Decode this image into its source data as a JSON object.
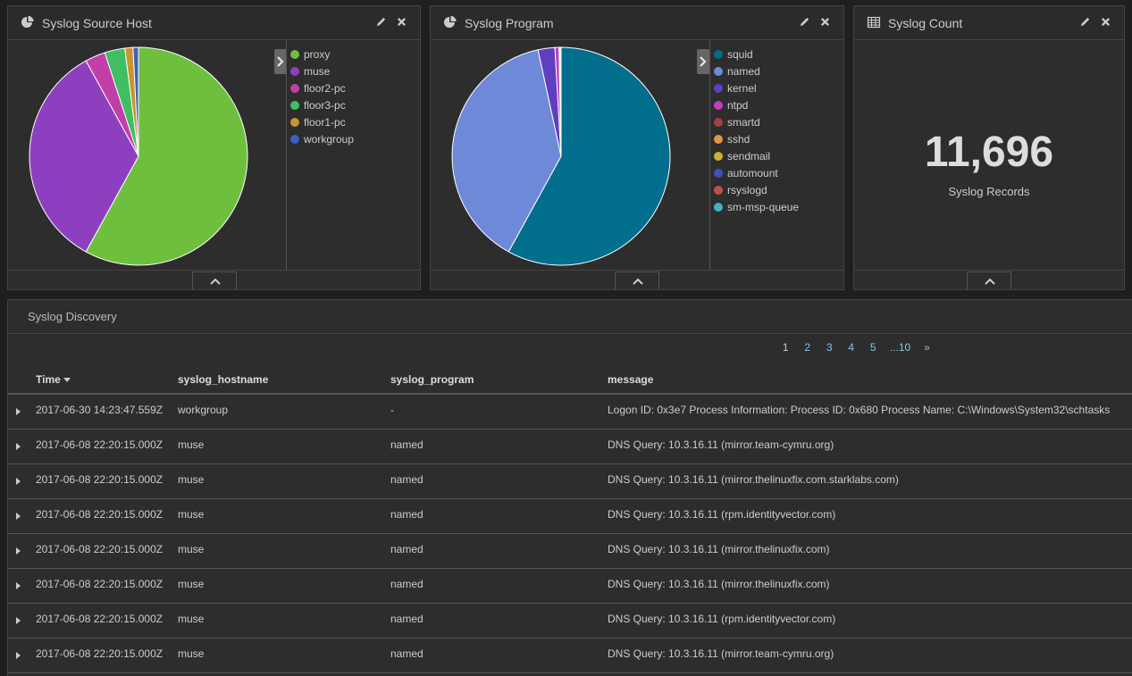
{
  "panels": {
    "source_host": {
      "title": "Syslog Source Host",
      "icon": "pie-chart-icon",
      "legend": [
        {
          "label": "proxy",
          "color": "#6fbf3f",
          "value": 58
        },
        {
          "label": "muse",
          "color": "#8e3fbf",
          "value": 34
        },
        {
          "label": "floor2-pc",
          "color": "#c23fa8",
          "value": 3
        },
        {
          "label": "floor3-pc",
          "color": "#3fbf62",
          "value": 3
        },
        {
          "label": "floor1-pc",
          "color": "#c9952f",
          "value": 1.2
        },
        {
          "label": "workgroup",
          "color": "#3f5fbf",
          "value": 0.8
        }
      ]
    },
    "program": {
      "title": "Syslog Program",
      "icon": "pie-chart-icon",
      "legend": [
        {
          "label": "squid",
          "color": "#006e8c",
          "value": 58
        },
        {
          "label": "named",
          "color": "#6f89d9",
          "value": 38.6
        },
        {
          "label": "kernel",
          "color": "#5f3fbf",
          "value": 2.5
        },
        {
          "label": "ntpd",
          "color": "#bf3fbf",
          "value": 0.6
        },
        {
          "label": "smartd",
          "color": "#a83f3f",
          "value": 0.1
        },
        {
          "label": "sshd",
          "color": "#e0954a",
          "value": 0.1
        },
        {
          "label": "sendmail",
          "color": "#c9b42f",
          "value": 0.03
        },
        {
          "label": "automount",
          "color": "#3f4fbf",
          "value": 0.03
        },
        {
          "label": "rsyslogd",
          "color": "#c0504d",
          "value": 0.02
        },
        {
          "label": "sm-msp-queue",
          "color": "#3fb6bf",
          "value": 0.02
        }
      ]
    },
    "count": {
      "title": "Syslog Count",
      "icon": "table-icon",
      "value": "11,696",
      "label": "Syslog Records"
    }
  },
  "discovery": {
    "title": "Syslog Discovery",
    "pager": {
      "pages": [
        "1",
        "2",
        "3",
        "4",
        "5"
      ],
      "ellipsis": "...10",
      "next": "»"
    },
    "columns": [
      "Time",
      "syslog_hostname",
      "syslog_program",
      "message"
    ],
    "rows": [
      {
        "time": "2017-06-30 14:23:47.559Z",
        "host": "workgroup",
        "program": "-",
        "message": "Logon ID:   0x3e7     Process Information:    Process ID:  0x680    Process Name:  C:\\Windows\\System32\\schtasks"
      },
      {
        "time": "2017-06-08 22:20:15.000Z",
        "host": "muse",
        "program": "named",
        "message": "DNS Query: 10.3.16.11 (mirror.team-cymru.org)"
      },
      {
        "time": "2017-06-08 22:20:15.000Z",
        "host": "muse",
        "program": "named",
        "message": "DNS Query: 10.3.16.11 (mirror.thelinuxfix.com.starklabs.com)"
      },
      {
        "time": "2017-06-08 22:20:15.000Z",
        "host": "muse",
        "program": "named",
        "message": "DNS Query: 10.3.16.11 (rpm.identityvector.com)"
      },
      {
        "time": "2017-06-08 22:20:15.000Z",
        "host": "muse",
        "program": "named",
        "message": "DNS Query: 10.3.16.11 (mirror.thelinuxfix.com)"
      },
      {
        "time": "2017-06-08 22:20:15.000Z",
        "host": "muse",
        "program": "named",
        "message": "DNS Query: 10.3.16.11 (mirror.thelinuxfix.com)"
      },
      {
        "time": "2017-06-08 22:20:15.000Z",
        "host": "muse",
        "program": "named",
        "message": "DNS Query: 10.3.16.11 (rpm.identityvector.com)"
      },
      {
        "time": "2017-06-08 22:20:15.000Z",
        "host": "muse",
        "program": "named",
        "message": "DNS Query: 10.3.16.11 (mirror.team-cymru.org)"
      }
    ]
  }
}
